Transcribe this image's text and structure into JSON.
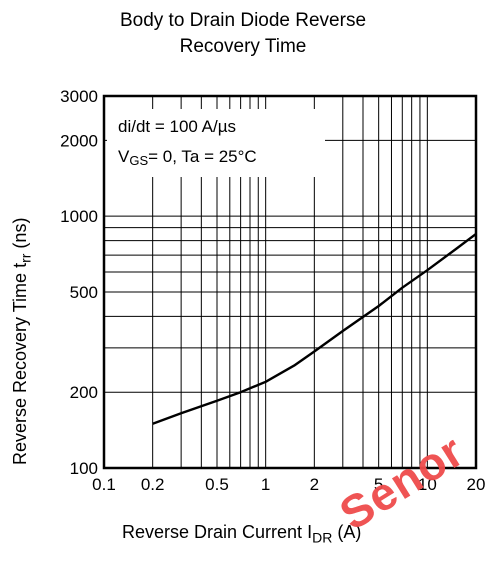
{
  "chart_data": {
    "type": "line",
    "title_line1": "Body to Drain Diode Reverse",
    "title_line2": "Recovery Time",
    "xlabel": "Reverse Drain Current",
    "xlabel_symbol": "I",
    "xlabel_sub": "DR",
    "xlabel_unit": "(A)",
    "ylabel": "Reverse Recovery Time",
    "ylabel_symbol": "t",
    "ylabel_sub": "rr",
    "ylabel_unit": "(ns)",
    "x_scale": "log",
    "y_scale": "log",
    "xlim": [
      0.1,
      20
    ],
    "ylim": [
      100,
      3000
    ],
    "x_ticks": [
      0.1,
      0.2,
      0.5,
      1,
      2,
      5,
      10,
      20
    ],
    "x_tick_labels": [
      "0.1",
      "0.2",
      "0.5",
      "1",
      "2",
      "5",
      "10",
      "20"
    ],
    "y_ticks": [
      100,
      200,
      500,
      1000,
      2000,
      3000
    ],
    "y_tick_labels": [
      "100",
      "200",
      "500",
      "1000",
      "2000",
      "3000"
    ],
    "grid": true,
    "annotation_line1": "di/dt = 100 A/µs",
    "annotation_line2_prefix": "V",
    "annotation_line2_sub": "GS",
    "annotation_line2_rest": "= 0,  Ta = 25°C",
    "series": [
      {
        "x": [
          0.2,
          0.3,
          0.5,
          0.7,
          1,
          1.5,
          2,
          3,
          5,
          7,
          10,
          15,
          20
        ],
        "y": [
          150,
          165,
          185,
          200,
          220,
          255,
          290,
          350,
          440,
          520,
          610,
          740,
          850
        ]
      }
    ]
  },
  "watermark": "Senor"
}
